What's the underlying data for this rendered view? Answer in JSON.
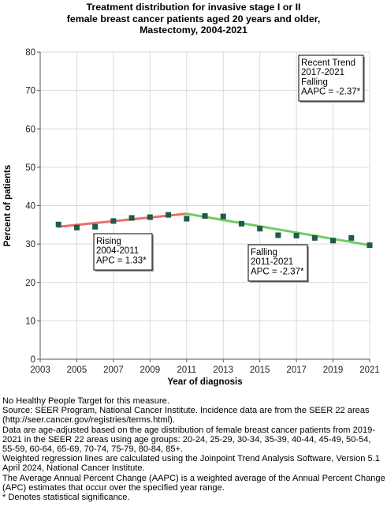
{
  "title_lines": [
    "Treatment distribution for invasive stage I or II",
    "female breast cancer patients aged 20 years and older,",
    "Mastectomy,  2004-2021"
  ],
  "chart_data": {
    "type": "line",
    "title": "Treatment distribution for invasive stage I or II female breast cancer patients aged 20 years and older, Mastectomy,  2004-2021",
    "xlabel": "Year of diagnosis",
    "ylabel": "Percent of patients",
    "xlim": [
      2003,
      2021
    ],
    "ylim": [
      0,
      80
    ],
    "x_ticks": [
      2003,
      2005,
      2007,
      2009,
      2011,
      2013,
      2015,
      2017,
      2019,
      2021
    ],
    "y_ticks": [
      0,
      10,
      20,
      30,
      40,
      50,
      60,
      70,
      80
    ],
    "grid": true,
    "series": [
      {
        "kind": "observed",
        "x": [
          2004,
          2005,
          2006,
          2007,
          2008,
          2009,
          2010,
          2011,
          2012,
          2013,
          2014,
          2015,
          2016,
          2017,
          2018,
          2019,
          2020,
          2021
        ],
        "values": [
          35.1,
          34.3,
          34.5,
          36.0,
          36.8,
          37.0,
          37.6,
          36.6,
          37.3,
          37.2,
          35.3,
          34.0,
          32.3,
          32.2,
          31.6,
          30.9,
          31.6,
          29.7
        ]
      },
      {
        "kind": "trend",
        "x": [
          2004,
          2011
        ],
        "values": [
          34.5,
          37.9
        ],
        "color": "#ef6b6b"
      },
      {
        "kind": "trend",
        "x": [
          2011,
          2021
        ],
        "values": [
          37.9,
          29.7
        ],
        "color": "#72cc63"
      }
    ],
    "marker_color": "#1f5a4a",
    "annotations": [
      {
        "lines": [
          "Rising",
          "2004-2011",
          "APC =  1.33*"
        ]
      },
      {
        "lines": [
          "Falling",
          "2011-2021",
          "APC = -2.37*"
        ]
      },
      {
        "lines": [
          "Recent Trend",
          "2017-2021",
          "Falling",
          "AAPC = -2.37*"
        ]
      }
    ]
  },
  "footnotes": [
    "No Healthy People Target for this measure.",
    "Source: SEER Program, National Cancer Institute. Incidence data are from the SEER 22 areas (http://seer.cancer.gov/registries/terms.html).",
    "Data are age-adjusted based on the age distribution of female breast cancer patients from 2019-2021 in the SEER 22 areas using age groups: 20-24, 25-29, 30-34, 35-39, 40-44, 45-49, 50-54, 55-59, 60-64, 65-69, 70-74, 75-79, 80-84, 85+.",
    "Weighted regression lines are calculated using the Joinpoint Trend Analysis Software, Version 5.1 April 2024, National Cancer Institute.",
    "The Average Annual Percent Change (AAPC) is a weighted average of the Annual Percent Change (APC) estimates that occur over the specified year range.",
    "* Denotes statistical significance."
  ]
}
